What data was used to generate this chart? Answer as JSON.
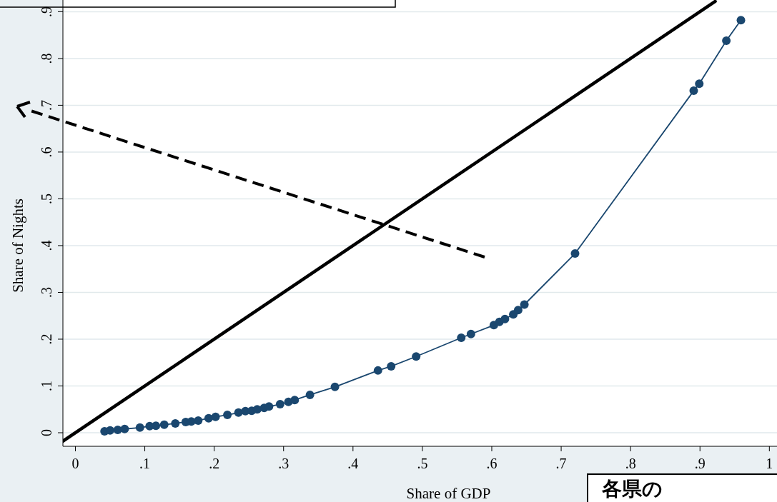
{
  "chart_data": {
    "type": "line",
    "xlabel": "Share of GDP",
    "ylabel": "Share of Nights",
    "xlim": [
      -0.018,
      1.011
    ],
    "ylim": [
      -0.029,
      0.925
    ],
    "xticks": [
      0,
      {
        "value": 0.1,
        "label": ".1"
      },
      {
        "value": 0.2,
        "label": ".2"
      },
      {
        "value": 0.3,
        "label": ".3"
      },
      {
        "value": 0.4,
        "label": ".4"
      },
      {
        "value": 0.5,
        "label": ".5"
      },
      {
        "value": 0.6,
        "label": ".6"
      },
      {
        "value": 0.7,
        "label": ".7"
      },
      {
        "value": 0.8,
        "label": ".8"
      },
      {
        "value": 0.9,
        "label": ".9"
      },
      1
    ],
    "yticks": [
      0,
      {
        "value": 0.1,
        "label": ".1"
      },
      {
        "value": 0.2,
        "label": ".2"
      },
      {
        "value": 0.3,
        "label": ".3"
      },
      {
        "value": 0.4,
        "label": ".4"
      },
      {
        "value": 0.5,
        "label": ".5"
      },
      {
        "value": 0.6,
        "label": ".6"
      },
      {
        "value": 0.7,
        "label": ".7"
      },
      {
        "value": 0.8,
        "label": ".8"
      },
      {
        "value": 0.9,
        "label": ".9"
      }
    ],
    "grid": "y",
    "marker": "circle",
    "annotations": [
      "各県の"
    ],
    "series": [
      {
        "type": "line",
        "color": "#1a476f",
        "x": [
          0.042,
          0.05,
          0.061,
          0.071,
          0.093,
          0.107,
          0.116,
          0.128,
          0.144,
          0.159,
          0.167,
          0.177,
          0.192,
          0.202,
          0.219,
          0.235,
          0.245,
          0.254,
          0.262,
          0.272,
          0.279,
          0.295,
          0.307,
          0.316,
          0.338,
          0.374,
          0.436,
          0.455,
          0.491,
          0.556,
          0.57,
          0.603,
          0.611,
          0.619,
          0.631,
          0.638,
          0.647,
          0.72,
          0.891,
          0.899,
          0.938,
          0.959
        ],
        "values": [
          0.003,
          0.005,
          0.006,
          0.008,
          0.011,
          0.014,
          0.015,
          0.017,
          0.02,
          0.023,
          0.024,
          0.026,
          0.031,
          0.034,
          0.038,
          0.043,
          0.046,
          0.047,
          0.05,
          0.053,
          0.056,
          0.061,
          0.066,
          0.07,
          0.081,
          0.098,
          0.133,
          0.142,
          0.163,
          0.203,
          0.211,
          0.23,
          0.237,
          0.243,
          0.253,
          0.262,
          0.274,
          0.383,
          0.731,
          0.746,
          0.838,
          0.882
        ]
      },
      {
        "type": "line",
        "color": "#000000",
        "marker": "none",
        "x": [
          -0.018,
          0.922
        ],
        "values": [
          -0.018,
          0.922
        ]
      }
    ]
  }
}
